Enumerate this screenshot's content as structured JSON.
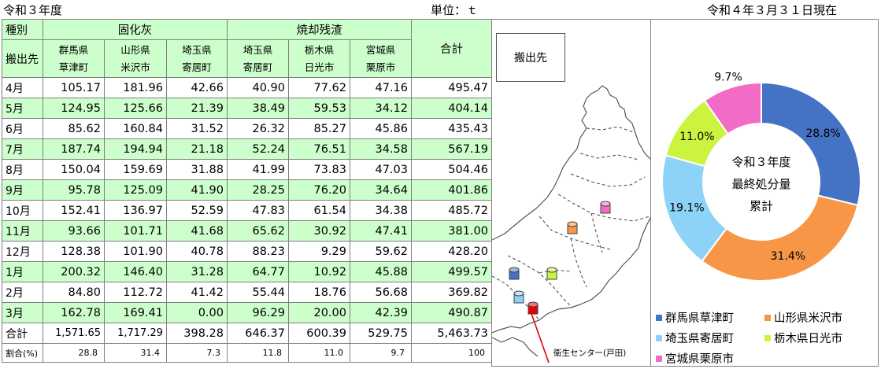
{
  "header": {
    "left": "令和３年度",
    "unit": "単位：ｔ",
    "date": "令和４年３月３１日現在"
  },
  "table": {
    "h_kind": "種別",
    "h_origin": "搬出先",
    "group_solid": "固化灰",
    "group_burn": "焼却残渣",
    "col_total_label": "合計",
    "columns": [
      {
        "pref": "群馬県",
        "city": "草津町"
      },
      {
        "pref": "山形県",
        "city": "米沢市"
      },
      {
        "pref": "埼玉県",
        "city": "寄居町"
      },
      {
        "pref": "埼玉県",
        "city": "寄居町"
      },
      {
        "pref": "栃木県",
        "city": "日光市"
      },
      {
        "pref": "宮城県",
        "city": "栗原市"
      }
    ],
    "rows": [
      {
        "month": "4月",
        "values": [
          "105.17",
          "181.96",
          "42.66",
          "40.90",
          "77.62",
          "47.16"
        ],
        "total": "495.47"
      },
      {
        "month": "5月",
        "values": [
          "124.95",
          "125.66",
          "21.39",
          "38.49",
          "59.53",
          "34.12"
        ],
        "total": "404.14"
      },
      {
        "month": "6月",
        "values": [
          "85.62",
          "160.84",
          "31.52",
          "26.32",
          "85.27",
          "45.86"
        ],
        "total": "435.43"
      },
      {
        "month": "7月",
        "values": [
          "187.74",
          "194.94",
          "21.18",
          "52.24",
          "76.51",
          "34.58"
        ],
        "total": "567.19"
      },
      {
        "month": "8月",
        "values": [
          "150.04",
          "159.69",
          "31.88",
          "41.99",
          "73.83",
          "47.03"
        ],
        "total": "504.46"
      },
      {
        "month": "9月",
        "values": [
          "95.78",
          "125.09",
          "41.90",
          "28.25",
          "76.20",
          "34.64"
        ],
        "total": "401.86"
      },
      {
        "month": "10月",
        "values": [
          "152.41",
          "136.97",
          "52.59",
          "47.83",
          "61.54",
          "34.38"
        ],
        "total": "485.72"
      },
      {
        "month": "11月",
        "values": [
          "93.66",
          "101.71",
          "41.68",
          "65.62",
          "30.92",
          "47.41"
        ],
        "total": "381.00"
      },
      {
        "month": "12月",
        "values": [
          "128.38",
          "101.90",
          "40.78",
          "88.23",
          "9.29",
          "59.62"
        ],
        "total": "428.20"
      },
      {
        "month": "1月",
        "values": [
          "200.32",
          "146.40",
          "31.28",
          "64.77",
          "10.92",
          "45.88"
        ],
        "total": "499.57"
      },
      {
        "month": "2月",
        "values": [
          "84.80",
          "112.72",
          "41.42",
          "55.44",
          "18.76",
          "56.68"
        ],
        "total": "369.82"
      },
      {
        "month": "3月",
        "values": [
          "162.78",
          "169.41",
          "0.00",
          "96.29",
          "20.00",
          "42.39"
        ],
        "total": "490.87"
      }
    ],
    "total_row": {
      "label": "合計",
      "values": [
        "1,571.65",
        "1,717.29",
        "398.28",
        "646.37",
        "600.39",
        "529.75"
      ],
      "total": "5,463.73"
    },
    "pct_row": {
      "label": "割合(%)",
      "values": [
        "28.8",
        "31.4",
        "7.3",
        "11.8",
        "11.0",
        "9.7"
      ],
      "total": "100"
    }
  },
  "map": {
    "dest_label": "搬出先",
    "center_label": "衛生センター(戸田)"
  },
  "chart_data": {
    "type": "pie",
    "donut": true,
    "center_text": [
      "令和３年度",
      "最終処分量",
      "累計"
    ],
    "slices": [
      {
        "name": "群馬県草津町",
        "value": 28.8,
        "label": "28.8%",
        "color": "#4472c4"
      },
      {
        "name": "山形県米沢市",
        "value": 31.4,
        "label": "31.4%",
        "color": "#f79646"
      },
      {
        "name": "埼玉県寄居町",
        "value": 19.1,
        "label": "19.1%",
        "color": "#8dd3f7"
      },
      {
        "name": "栃木県日光市",
        "value": 11.0,
        "label": "11.0%",
        "color": "#ccf33f"
      },
      {
        "name": "宮城県栗原市",
        "value": 9.7,
        "label": "9.7%",
        "color": "#f26bc7"
      }
    ],
    "legend_position": "bottom"
  }
}
